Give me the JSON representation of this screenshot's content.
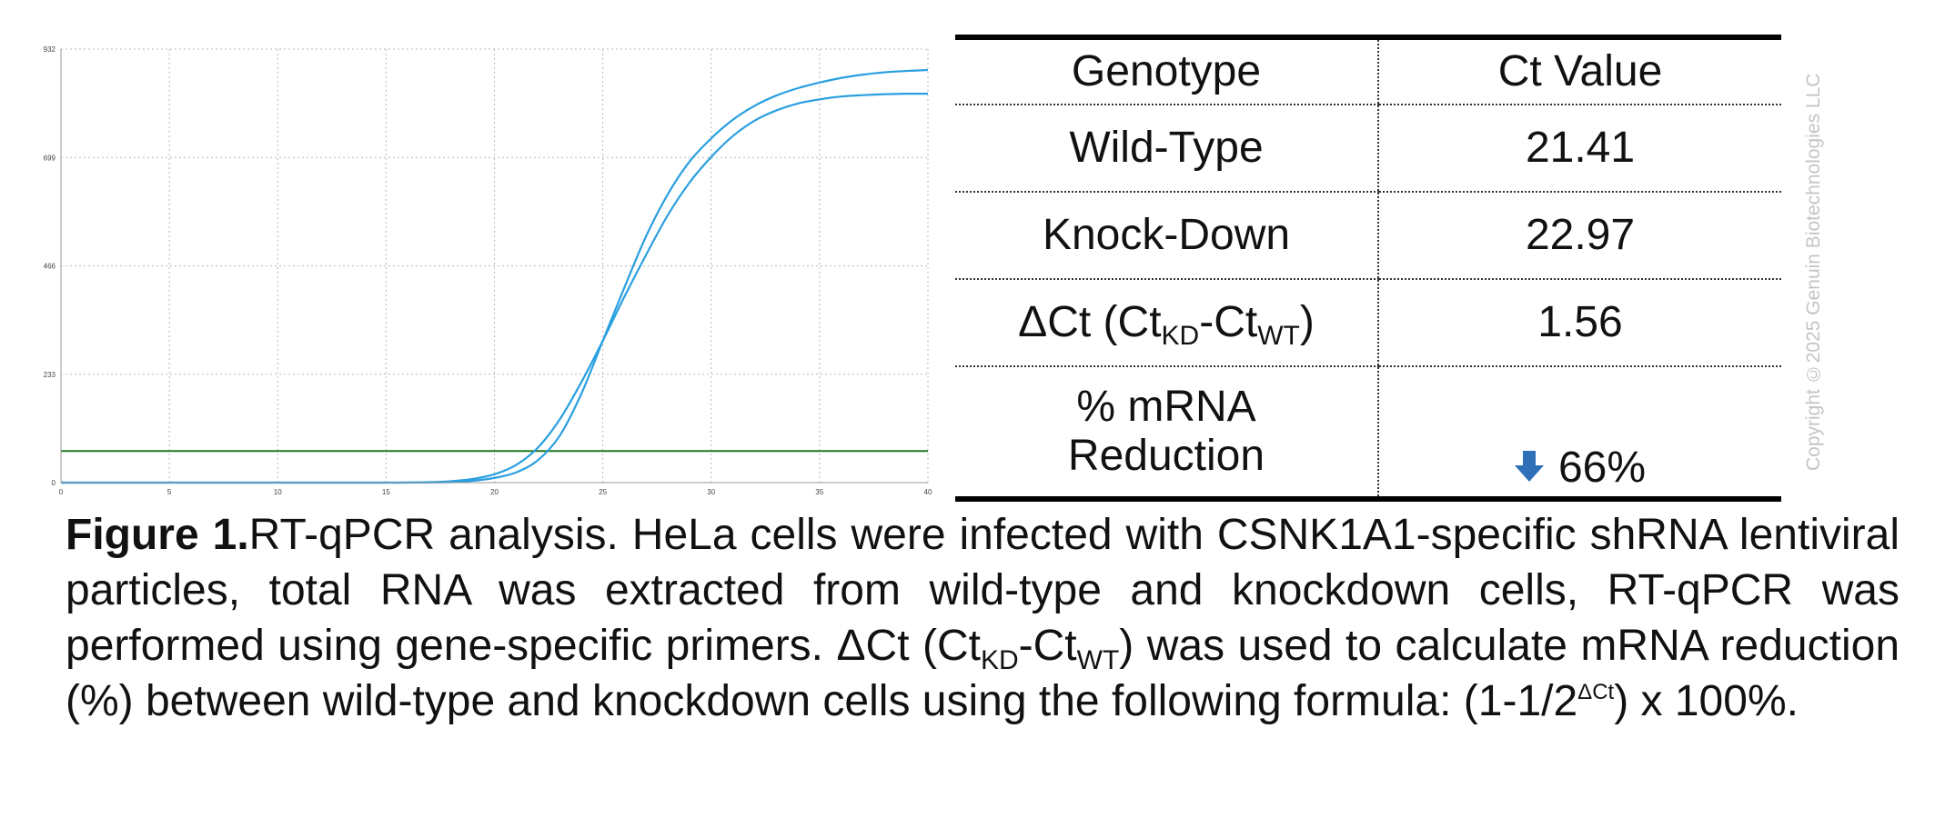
{
  "chart_data": {
    "type": "line",
    "x_ticks": [
      0,
      5,
      10,
      15,
      20,
      25,
      30,
      35,
      40
    ],
    "y_ticks": [
      0,
      233,
      466,
      699,
      932
    ],
    "xlim": [
      0,
      40
    ],
    "ylim": [
      0,
      932
    ],
    "grid": true,
    "threshold": 68,
    "threshold_color": "#1f7a1f",
    "series_color": "#2a9fe0",
    "series": [
      {
        "x": [
          0,
          5,
          10,
          15,
          17,
          18,
          19,
          20,
          21,
          22,
          23,
          24,
          25,
          26,
          27,
          28,
          29,
          30,
          31,
          32,
          33,
          34,
          35,
          36,
          37,
          38,
          39,
          40
        ],
        "y": [
          0,
          0,
          0,
          0,
          1,
          3,
          8,
          18,
          38,
          75,
          135,
          215,
          305,
          400,
          490,
          575,
          645,
          700,
          745,
          778,
          800,
          815,
          824,
          830,
          833,
          835,
          836,
          836
        ]
      },
      {
        "x": [
          0,
          5,
          10,
          15,
          18,
          19,
          20,
          21,
          22,
          23,
          24,
          25,
          26,
          27,
          28,
          29,
          30,
          31,
          32,
          33,
          34,
          35,
          36,
          37,
          38,
          39,
          40
        ],
        "y": [
          0,
          0,
          0,
          0,
          1,
          4,
          10,
          22,
          48,
          100,
          190,
          305,
          420,
          530,
          620,
          690,
          740,
          780,
          810,
          832,
          848,
          860,
          870,
          877,
          882,
          885,
          887
        ]
      }
    ]
  },
  "table": {
    "headers": [
      "Genotype",
      "Ct Value"
    ],
    "rows": [
      {
        "label": "Wild-Type",
        "value": "21.41"
      },
      {
        "label": "Knock-Down",
        "value": "22.97"
      },
      {
        "label_main": "ΔCt (Ct",
        "label_sub1": "KD",
        "label_mid": "-Ct",
        "label_sub2": "WT",
        "label_end": ")",
        "value": "1.56"
      },
      {
        "label_line1": "% mRNA",
        "label_line2": "Reduction",
        "value": "66%",
        "icon": "arrow-down-icon",
        "icon_color": "#2e6fb7"
      }
    ]
  },
  "copyright": "Copyright ©2025 Genuin Biotechnologies LLC",
  "caption": {
    "title": "Figure 1.",
    "text_1": "RT-qPCR analysis. HeLa cells were infected with CSNK1A1-specific shRNA lentiviral particles, total RNA was extracted from wild-type and knockdown cells, RT-qPCR was performed using gene-specific primers. ΔCt (Ct",
    "sub_1": "KD",
    "text_2": "-Ct",
    "sub_2": "WT",
    "text_3": ") was used to calculate mRNA reduction (%) between wild-type and knockdown cells using the following formula: (1-1/2",
    "sup": "ΔCt",
    "text_4": ") x 100%."
  }
}
